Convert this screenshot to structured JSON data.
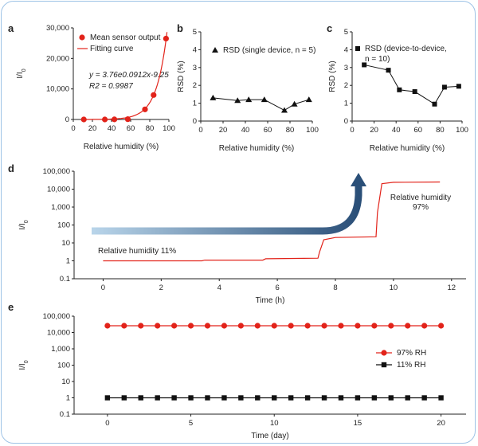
{
  "colors": {
    "red": "#e2231a",
    "black": "#111111",
    "frame": "#9ec3e6",
    "arrow_start": "#b9d5ea",
    "arrow_end": "#2a4f78"
  },
  "chart_data": [
    {
      "panel": "a",
      "type": "scatter",
      "xlabel": "Relative humidity (%)",
      "ylabel": "I/I0",
      "xlim": [
        0,
        100
      ],
      "ylim": [
        0,
        30000
      ],
      "xticks": [
        "0",
        "20",
        "40",
        "60",
        "80",
        "100"
      ],
      "yticks": [
        "0",
        "10,000",
        "20,000",
        "30,000"
      ],
      "x": [
        11,
        33,
        43,
        57,
        75,
        84,
        97
      ],
      "y": [
        0,
        0,
        30,
        90,
        3300,
        8000,
        26500
      ],
      "legend": [
        "Mean sensor output",
        "Fitting curve"
      ],
      "fit_equation": "y = 3.76e0.0912x-9.25",
      "r_squared": "R2 = 0.9987"
    },
    {
      "panel": "b",
      "type": "line",
      "xlabel": "Relative humidity (%)",
      "ylabel": "RSD (%)",
      "xlim": [
        0,
        100
      ],
      "ylim": [
        0,
        5
      ],
      "xticks": [
        "0",
        "20",
        "40",
        "60",
        "80",
        "100"
      ],
      "yticks": [
        "0",
        "1",
        "2",
        "3",
        "4",
        "5"
      ],
      "x": [
        11,
        33,
        43,
        57,
        75,
        84,
        97
      ],
      "y": [
        1.3,
        1.15,
        1.2,
        1.2,
        0.6,
        0.95,
        1.2
      ],
      "legend": "RSD (single device, n = 5)"
    },
    {
      "panel": "c",
      "type": "line",
      "xlabel": "Relative humidity (%)",
      "ylabel": "RSD (%)",
      "xlim": [
        0,
        100
      ],
      "ylim": [
        0,
        5
      ],
      "xticks": [
        "0",
        "20",
        "40",
        "60",
        "80",
        "100"
      ],
      "yticks": [
        "0",
        "1",
        "2",
        "3",
        "4",
        "5"
      ],
      "x": [
        11,
        33,
        43,
        57,
        75,
        84,
        97
      ],
      "y": [
        3.15,
        2.85,
        1.75,
        1.65,
        0.95,
        1.9,
        1.95
      ],
      "legend_line1": "RSD (device-to-device,",
      "legend_line2": "n = 10)"
    },
    {
      "panel": "d",
      "type": "line",
      "xlabel": "Time (h)",
      "ylabel": "I/I0",
      "xlim": [
        -1,
        12.5
      ],
      "ylim_log": [
        0.1,
        100000
      ],
      "scale": "log",
      "xticks": [
        0,
        2,
        4,
        6,
        8,
        10,
        12
      ],
      "yticks": [
        "0.1",
        "1",
        "10",
        "100",
        "1,000",
        "10,000",
        "100,000"
      ],
      "x": [
        0,
        3.4,
        3.5,
        5.5,
        5.6,
        7.4,
        7.45,
        7.6,
        8,
        9.4,
        9.45,
        9.6,
        10,
        11.6
      ],
      "y": [
        1,
        1,
        1.1,
        1.1,
        1.3,
        1.4,
        3,
        15,
        20,
        22,
        500,
        20000,
        24000,
        25000
      ],
      "annotation_low": "Relative humidity 11%",
      "annotation_high_1": "Relative humidity",
      "annotation_high_2": "97%"
    },
    {
      "panel": "e",
      "type": "line",
      "xlabel": "Time (day)",
      "ylabel": "I/I0",
      "xlim": [
        -2,
        21.5
      ],
      "ylim_log": [
        0.1,
        100000
      ],
      "scale": "log",
      "xticks": [
        0,
        5,
        10,
        15,
        20
      ],
      "yticks": [
        "0.1",
        "1",
        "10",
        "100",
        "1,000",
        "10,000",
        "100,000"
      ],
      "series": [
        {
          "name": "97% RH",
          "value": 26000,
          "days": [
            0,
            1,
            2,
            3,
            4,
            5,
            6,
            7,
            8,
            9,
            10,
            11,
            12,
            13,
            14,
            15,
            16,
            17,
            18,
            19,
            20
          ]
        },
        {
          "name": "11% RH",
          "value": 1,
          "days": [
            0,
            1,
            2,
            3,
            4,
            5,
            6,
            7,
            8,
            9,
            10,
            11,
            12,
            13,
            14,
            15,
            16,
            17,
            18,
            19,
            20
          ]
        }
      ]
    }
  ]
}
